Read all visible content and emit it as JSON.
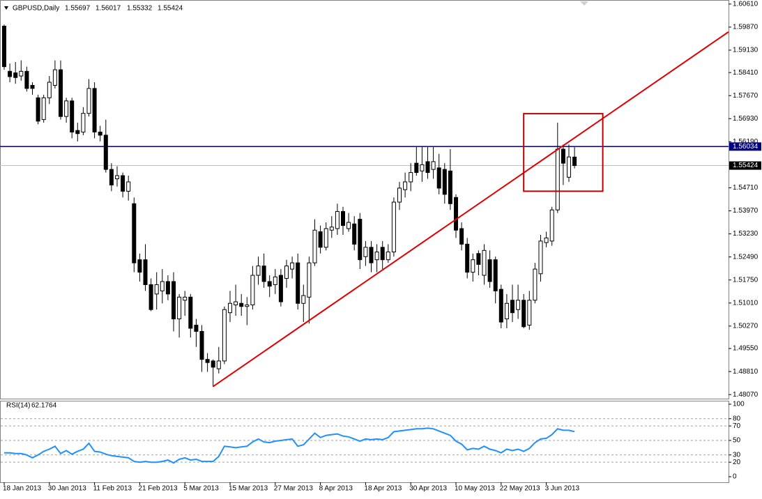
{
  "chart_data": {
    "type": "candlestick",
    "title": "GBPUSD,Daily",
    "categories": [
      "18 Jan 2013",
      null,
      null,
      null,
      null,
      null,
      null,
      null,
      "30 Jan 2013",
      null,
      null,
      null,
      null,
      null,
      null,
      null,
      "11 Feb 2013",
      null,
      null,
      null,
      null,
      null,
      null,
      null,
      "21 Feb 2013",
      null,
      null,
      null,
      null,
      null,
      null,
      null,
      "5 Mar 2013",
      null,
      null,
      null,
      null,
      null,
      null,
      null,
      "15 Mar 2013",
      null,
      null,
      null,
      null,
      null,
      null,
      null,
      "27 Mar 2013",
      null,
      null,
      null,
      null,
      null,
      null,
      null,
      "8 Apr 2013",
      null,
      null,
      null,
      null,
      null,
      null,
      null,
      "18 Apr 2013",
      null,
      null,
      null,
      null,
      null,
      null,
      null,
      "30 Apr 2013",
      null,
      null,
      null,
      null,
      null,
      null,
      null,
      "10 May 2013",
      null,
      null,
      null,
      null,
      null,
      null,
      null,
      "22 May 2013",
      null,
      null,
      null,
      null,
      null,
      null,
      null,
      "3 Jun 2013",
      null,
      null,
      null,
      null,
      null
    ],
    "open": [
      1.599,
      1.5845,
      1.584,
      1.583,
      1.5845,
      1.58,
      1.576,
      1.569,
      1.576,
      1.58,
      1.585,
      1.57,
      1.575,
      1.5655,
      1.565,
      1.571,
      1.579,
      1.565,
      1.564,
      1.553,
      1.55,
      1.551,
      1.546,
      1.542,
      1.524,
      1.524,
      1.516,
      1.513,
      1.514,
      1.517,
      1.517,
      1.505,
      1.511,
      1.512,
      1.503,
      1.501,
      1.492,
      1.4915,
      1.489,
      1.4915,
      1.507,
      1.5095,
      1.51,
      1.509,
      1.5095,
      1.519,
      1.522,
      1.517,
      1.516,
      1.519,
      1.518,
      1.521,
      1.523,
      1.51,
      1.512,
      1.523,
      1.533,
      1.528,
      1.5335,
      1.534,
      1.5395,
      1.534,
      1.5355,
      1.537,
      1.525,
      1.528,
      1.524,
      1.528,
      1.524,
      1.5265,
      1.5425,
      1.5465,
      1.549,
      1.555,
      1.5525,
      1.5555,
      1.553,
      1.5535,
      1.553,
      1.5525,
      1.544,
      1.534,
      1.529,
      1.52,
      1.526,
      1.519,
      1.524,
      1.524,
      1.5145,
      1.505,
      1.511,
      1.508,
      1.511,
      1.503,
      1.511,
      1.5195,
      1.5295,
      1.53,
      1.54,
      1.5595,
      1.5505,
      1.55697
    ],
    "high": [
      1.5995,
      1.587,
      1.5875,
      1.588,
      1.586,
      1.581,
      1.577,
      1.577,
      1.583,
      1.588,
      1.588,
      1.576,
      1.576,
      1.568,
      1.573,
      1.582,
      1.581,
      1.567,
      1.569,
      1.555,
      1.554,
      1.552,
      1.551,
      1.544,
      1.526,
      1.529,
      1.518,
      1.52,
      1.521,
      1.519,
      1.52,
      1.513,
      1.514,
      1.513,
      1.505,
      1.503,
      1.494,
      1.492,
      1.496,
      1.509,
      1.514,
      1.516,
      1.513,
      1.512,
      1.522,
      1.525,
      1.526,
      1.519,
      1.521,
      1.521,
      1.524,
      1.525,
      1.526,
      1.516,
      1.525,
      1.537,
      1.535,
      1.536,
      1.538,
      1.542,
      1.541,
      1.539,
      1.538,
      1.539,
      1.53,
      1.53,
      1.529,
      1.53,
      1.529,
      1.544,
      1.549,
      1.552,
      1.555,
      1.5605,
      1.5605,
      1.5605,
      1.5605,
      1.558,
      1.555,
      1.5595,
      1.545,
      1.536,
      1.531,
      1.526,
      1.527,
      1.529,
      1.527,
      1.525,
      1.516,
      1.513,
      1.516,
      1.516,
      1.513,
      1.514,
      1.523,
      1.532,
      1.533,
      1.541,
      1.568,
      1.561,
      1.561,
      1.56017
    ],
    "low": [
      1.585,
      1.581,
      1.5805,
      1.5815,
      1.578,
      1.577,
      1.5675,
      1.568,
      1.574,
      1.579,
      1.569,
      1.568,
      1.563,
      1.562,
      1.564,
      1.57,
      1.563,
      1.562,
      1.552,
      1.546,
      1.5475,
      1.544,
      1.543,
      1.52,
      1.517,
      1.514,
      1.5075,
      1.508,
      1.51,
      1.511,
      1.501,
      1.499,
      1.506,
      1.499,
      1.496,
      1.488,
      1.488,
      1.4832,
      1.4875,
      1.4905,
      1.504,
      1.506,
      1.506,
      1.503,
      1.508,
      1.516,
      1.515,
      1.512,
      1.513,
      1.509,
      1.515,
      1.518,
      1.508,
      1.504,
      1.5035,
      1.522,
      1.526,
      1.527,
      1.531,
      1.532,
      1.532,
      1.533,
      1.527,
      1.521,
      1.522,
      1.52,
      1.52,
      1.521,
      1.523,
      1.525,
      1.54,
      1.544,
      1.546,
      1.551,
      1.549,
      1.55,
      1.55,
      1.545,
      1.542,
      1.54,
      1.531,
      1.527,
      1.518,
      1.517,
      1.519,
      1.516,
      1.515,
      1.51,
      1.502,
      1.502,
      1.504,
      1.505,
      1.502,
      1.5015,
      1.51,
      1.517,
      1.528,
      1.5285,
      1.539,
      1.548,
      1.549,
      1.55332
    ],
    "close": [
      1.586,
      1.5828,
      1.5825,
      1.5845,
      1.579,
      1.579,
      1.5685,
      1.576,
      1.581,
      1.585,
      1.57,
      1.575,
      1.565,
      1.5645,
      1.571,
      1.579,
      1.565,
      1.564,
      1.553,
      1.548,
      1.551,
      1.546,
      1.549,
      1.523,
      1.52,
      1.516,
      1.508,
      1.516,
      1.517,
      1.513,
      1.505,
      1.512,
      1.512,
      1.502,
      1.501,
      1.492,
      1.491,
      1.4895,
      1.4915,
      1.508,
      1.51,
      1.5105,
      1.509,
      1.5095,
      1.519,
      1.522,
      1.517,
      1.5155,
      1.5185,
      1.5105,
      1.522,
      1.523,
      1.51,
      1.5125,
      1.523,
      1.5335,
      1.528,
      1.534,
      1.5345,
      1.5395,
      1.535,
      1.536,
      1.529,
      1.524,
      1.528,
      1.523,
      1.5265,
      1.524,
      1.5265,
      1.5425,
      1.547,
      1.549,
      1.552,
      1.552,
      1.5545,
      1.552,
      1.5555,
      1.547,
      1.545,
      1.542,
      1.5335,
      1.529,
      1.52,
      1.524,
      1.5225,
      1.527,
      1.517,
      1.514,
      1.504,
      1.51,
      1.507,
      1.511,
      1.5025,
      1.511,
      1.521,
      1.53,
      1.531,
      1.54,
      1.5595,
      1.555,
      1.557,
      1.55424
    ],
    "color_up": "#ffffff",
    "color_down": "#000000",
    "ylim": [
      1.4794,
      1.6074
    ],
    "yticks": [
      {
        "value": 1.6061,
        "label": "1.60610"
      },
      {
        "value": 1.5987,
        "label": "1.59870"
      },
      {
        "value": 1.5913,
        "label": "1.59130"
      },
      {
        "value": 1.5841,
        "label": "1.58410"
      },
      {
        "value": 1.5767,
        "label": "1.57670"
      },
      {
        "value": 1.5693,
        "label": "1.56930"
      },
      {
        "value": 1.5619,
        "label": "1.56190"
      },
      {
        "value": 1.5471,
        "label": "1.54710"
      },
      {
        "value": 1.5397,
        "label": "1.53970"
      },
      {
        "value": 1.5323,
        "label": "1.53230"
      },
      {
        "value": 1.5249,
        "label": "1.52490"
      },
      {
        "value": 1.5175,
        "label": "1.51750"
      },
      {
        "value": 1.5101,
        "label": "1.51010"
      },
      {
        "value": 1.5027,
        "label": "1.50270"
      },
      {
        "value": 1.4955,
        "label": "1.49550"
      },
      {
        "value": 1.4881,
        "label": "1.48810"
      },
      {
        "value": 1.4807,
        "label": "1.48070"
      }
    ],
    "hline": {
      "value": 1.56034,
      "label": "1.56034",
      "color": "#000080"
    },
    "bid_color": "#c0c0c0",
    "trendline": {
      "color": "#e00000",
      "points": [
        [
          37,
          1.4833
        ],
        [
          98,
          1.5594
        ]
      ]
    },
    "rectangle": {
      "color": "#c00000",
      "x": [
        92,
        106
      ],
      "y": [
        1.546,
        1.5709
      ]
    },
    "rsi": {
      "label": "RSI(14)",
      "color": "#1e90ff",
      "values": [
        33,
        33,
        32,
        32,
        30,
        26,
        30,
        35,
        38,
        42,
        32,
        36,
        31,
        35,
        38,
        46,
        35,
        34,
        31,
        29,
        28,
        27,
        26,
        21,
        20,
        21,
        20,
        20,
        21,
        23,
        19,
        24,
        26,
        23,
        24,
        21,
        21,
        21,
        28,
        42,
        41,
        40,
        41,
        42,
        48,
        52,
        48,
        47,
        49,
        50,
        51,
        52,
        42,
        44,
        52,
        60,
        54,
        57,
        58,
        59,
        56,
        55,
        52,
        49,
        52,
        51,
        52,
        51,
        54,
        62,
        63,
        64,
        65,
        66,
        66,
        67,
        66,
        63,
        60,
        57,
        49,
        45,
        37,
        39,
        38,
        42,
        38,
        36,
        33,
        38,
        36,
        38,
        35,
        39,
        47,
        52,
        53,
        58,
        66,
        64,
        64,
        62.1764
      ],
      "ylim": [
        -7.7,
        103.8
      ],
      "yticks": [
        100,
        80,
        70,
        50,
        30,
        20,
        0
      ]
    }
  }
}
